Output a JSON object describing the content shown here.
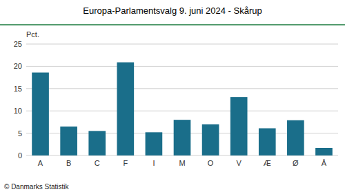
{
  "chart_data": {
    "type": "bar",
    "title": "Europa-Parlamentsvalg 9. juni 2024 - Skårup",
    "ylabel": "Pct.",
    "annotations": [
      "© Danmarks Statistik"
    ],
    "categories": [
      "A",
      "B",
      "C",
      "F",
      "I",
      "M",
      "O",
      "V",
      "Æ",
      "Ø",
      "Å"
    ],
    "values": [
      18.6,
      6.5,
      5.5,
      20.9,
      5.2,
      8.0,
      7.0,
      13.1,
      6.1,
      7.9,
      1.7
    ],
    "color": "#1a6e8a",
    "ylim": [
      0,
      25
    ],
    "yticks": [
      0,
      5,
      10,
      15,
      20,
      25
    ],
    "grid": true
  }
}
